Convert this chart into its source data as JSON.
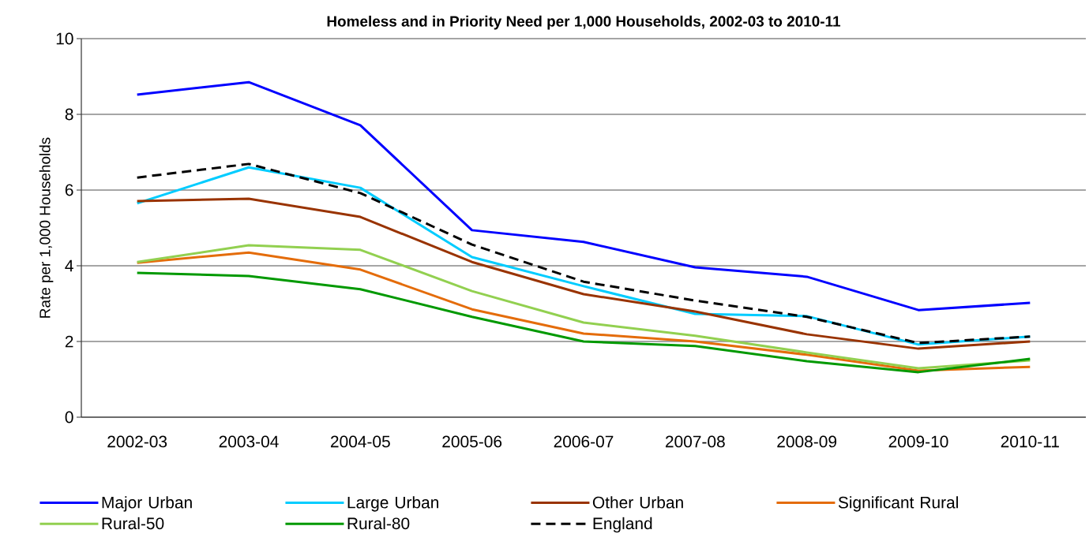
{
  "chart_data": {
    "type": "line",
    "title": "Homeless and in Priority Need per 1,000 Households, 2002-03 to  2010-11",
    "ylabel": "Rate per 1,000 Households",
    "categories": [
      "2002-03",
      "2003-04",
      "2004-05",
      "2005-06",
      "2006-07",
      "2007-08",
      "2008-09",
      "2009-10",
      "2010-11"
    ],
    "series": [
      {
        "name": "Major Urban",
        "color": "#0000ff",
        "values": [
          8.52,
          8.85,
          7.71,
          4.94,
          4.63,
          3.96,
          3.71,
          2.83,
          3.02
        ]
      },
      {
        "name": "Large Urban",
        "color": "#00ccff",
        "values": [
          5.65,
          6.6,
          6.06,
          4.23,
          3.46,
          2.73,
          2.67,
          1.92,
          2.13
        ]
      },
      {
        "name": "Other Urban",
        "color": "#993300",
        "values": [
          5.71,
          5.77,
          5.29,
          4.1,
          3.25,
          2.79,
          2.19,
          1.81,
          2.0
        ]
      },
      {
        "name": "Significant Rural",
        "color": "#e46c0a",
        "values": [
          4.08,
          4.35,
          3.9,
          2.85,
          2.21,
          2.0,
          1.65,
          1.23,
          1.33
        ]
      },
      {
        "name": "Rural-50",
        "color": "#92d050",
        "values": [
          4.1,
          4.54,
          4.42,
          3.33,
          2.5,
          2.15,
          1.71,
          1.29,
          1.5
        ]
      },
      {
        "name": "Rural-80",
        "color": "#009900",
        "values": [
          3.81,
          3.73,
          3.38,
          2.65,
          2.0,
          1.88,
          1.48,
          1.19,
          1.54
        ]
      },
      {
        "name": "England",
        "color": "#000000",
        "line_style": "dashed",
        "values": [
          6.33,
          6.69,
          5.92,
          4.56,
          3.58,
          3.08,
          2.65,
          1.96,
          2.13
        ]
      }
    ],
    "ylim": [
      0,
      10
    ],
    "yticks": [
      0,
      2,
      4,
      6,
      8,
      10
    ],
    "grid": "y",
    "legend": "bottom",
    "marker": "none",
    "line_style": "solid"
  }
}
